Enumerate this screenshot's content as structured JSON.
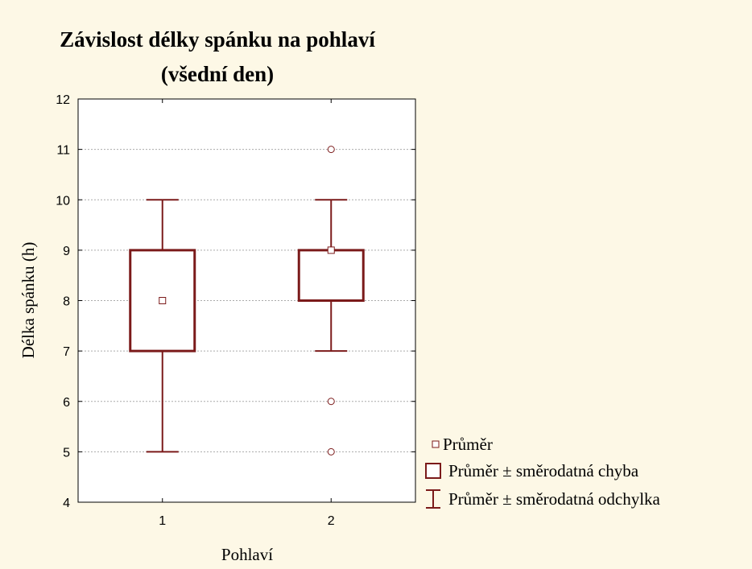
{
  "chart_data": {
    "type": "box",
    "title": "Závislost délky spánku na pohlaví",
    "subtitle": "(všední den)",
    "x_label": "Pohlaví",
    "y_label": "Délka spánku (h)",
    "categories": [
      "1",
      "2"
    ],
    "groups": [
      {
        "mean": 8,
        "box_low": 7,
        "box_high": 9,
        "whisker_low": 5,
        "whisker_high": 10,
        "outliers": []
      },
      {
        "mean": 9,
        "box_low": 8,
        "box_high": 9,
        "whisker_low": 7,
        "whisker_high": 10,
        "outliers": [
          11,
          6,
          5
        ]
      }
    ],
    "color": "#7b1a1a",
    "ylim": [
      4,
      12
    ],
    "yticks": [
      4,
      5,
      6,
      7,
      8,
      9,
      10,
      11,
      12
    ],
    "grid": true,
    "legend": [
      "Průměr",
      "Průměr ± směrodatná chyba",
      "Průměr ± směrodatná odchylka"
    ],
    "legend_position": "lower right"
  }
}
